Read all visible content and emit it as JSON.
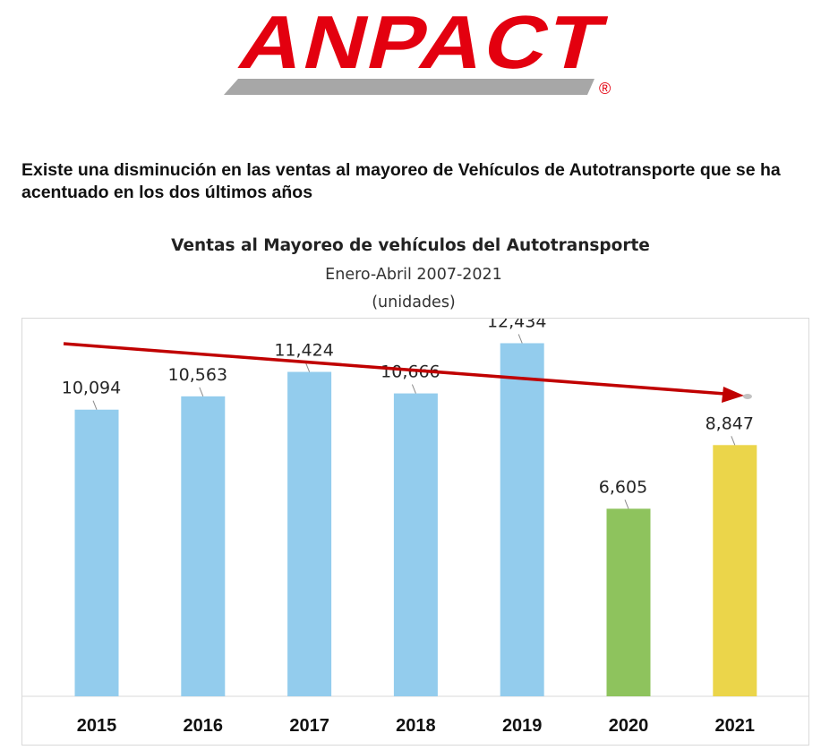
{
  "brand": {
    "name": "ANPACT",
    "registered": "®",
    "colors": {
      "red": "#e3000f",
      "gray": "#a7a7a7"
    }
  },
  "headline": "Existe una disminución en las ventas al mayoreo de Vehículos de Autotransporte que se ha acentuado en los dos últimos años",
  "chart_data": {
    "type": "bar",
    "title": "Ventas al Mayoreo de vehículos del Autotransporte",
    "subtitle": "Enero-Abril 2007-2021",
    "unit": "(unidades)",
    "categories": [
      "2015",
      "2016",
      "2017",
      "2018",
      "2019",
      "2020",
      "2021"
    ],
    "values": [
      10094,
      10563,
      11424,
      10666,
      12434,
      6605,
      8847
    ],
    "value_labels": [
      "10,094",
      "10,563",
      "11,424",
      "10,666",
      "12,434",
      "6,605",
      "8,847"
    ],
    "bar_colors": [
      "#93cced",
      "#93cced",
      "#93cced",
      "#93cced",
      "#93cced",
      "#8ec35d",
      "#ebd54a"
    ],
    "ylim": [
      0,
      13300
    ],
    "grid": false,
    "legend": "none",
    "trend_arrow": {
      "direction": "downward",
      "color": "#c00000"
    }
  }
}
